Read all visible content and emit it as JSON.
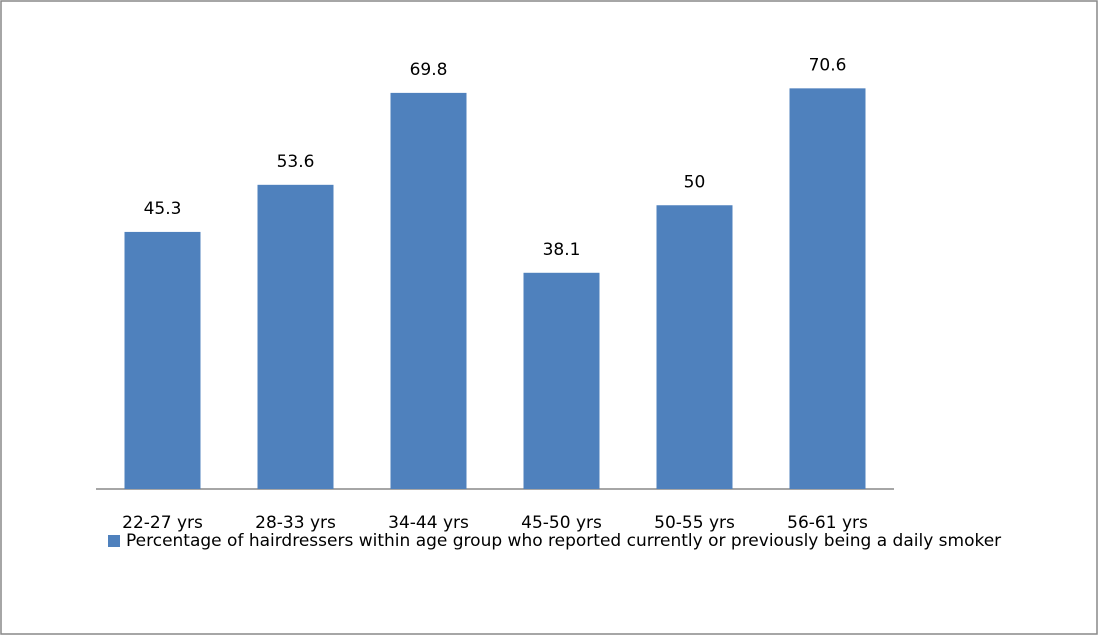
{
  "chart_data": {
    "type": "bar",
    "categories": [
      "22-27 yrs",
      "28-33 yrs",
      "34-44 yrs",
      "45-50 yrs",
      "50-55 yrs",
      "56-61 yrs"
    ],
    "series": [
      {
        "name": "Percentage of hairdressers within age group who reported currently or previously being a daily smoker",
        "color": "#4f81bd",
        "values": [
          45.3,
          53.6,
          69.8,
          38.1,
          50,
          70.6
        ]
      }
    ],
    "ylim": [
      0,
      80
    ],
    "legend": "bottom"
  }
}
